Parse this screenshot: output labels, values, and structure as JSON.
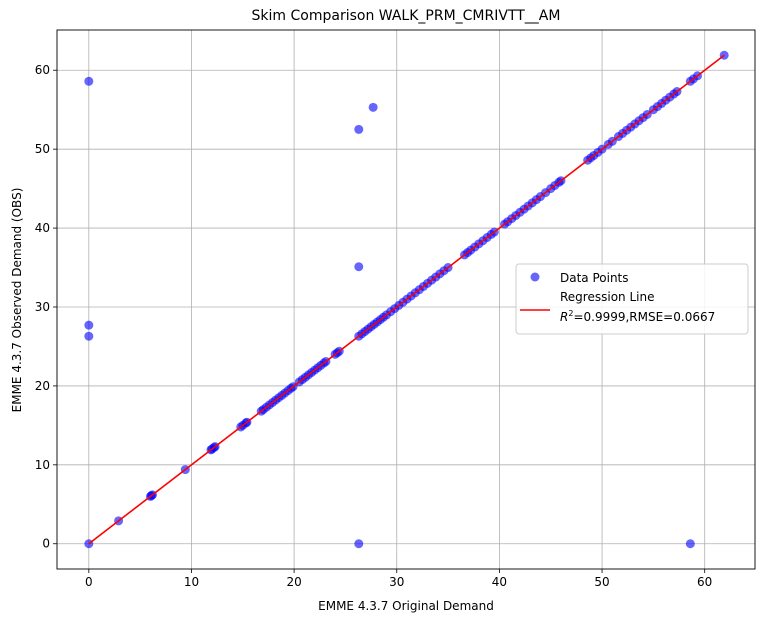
{
  "chart_data": {
    "type": "scatter",
    "title": "Skim Comparison WALK_PRM_CMRIVTT__AM",
    "xlabel": "EMME 4.3.7 Original Demand",
    "ylabel": "EMME 4.3.7 Observed Demand (OBS)",
    "xlim": [
      -3.1,
      64.9
    ],
    "ylim": [
      -3.2,
      65.1
    ],
    "xticks": [
      0,
      10,
      20,
      30,
      40,
      50,
      60
    ],
    "yticks": [
      0,
      10,
      20,
      30,
      40,
      50,
      60
    ],
    "grid": true,
    "legend_placement": "center-right",
    "legend": {
      "points_label": "Data Points",
      "line_label": "Regression Line",
      "r2_label": "R",
      "r2_sup": "2",
      "stats_label": "=0.9999,RMSE=0.0667"
    },
    "colors": {
      "points": "#0000ff",
      "line": "#ff0000"
    },
    "regression": {
      "slope": 1.0,
      "intercept": 0.0,
      "x_range": [
        0,
        61.9
      ],
      "r2": 0.9999,
      "rmse": 0.0667
    },
    "diagonal_x": [
      0,
      2.9,
      6.0,
      6.1,
      6.2,
      9.4,
      11.9,
      12.0,
      12.2,
      12.3,
      14.8,
      15.0,
      15.3,
      15.4,
      16.8,
      17.0,
      17.3,
      17.6,
      17.9,
      18.2,
      18.5,
      18.8,
      19.1,
      19.4,
      19.7,
      19.9,
      20.5,
      20.8,
      21.1,
      21.4,
      21.7,
      22.0,
      22.3,
      22.6,
      22.9,
      23.1,
      24.0,
      24.2,
      24.4,
      26.3,
      26.6,
      26.9,
      27.2,
      27.5,
      27.8,
      28.1,
      28.4,
      28.7,
      29.0,
      29.4,
      29.8,
      30.2,
      30.6,
      31.0,
      31.4,
      31.8,
      32.2,
      32.6,
      33.0,
      33.4,
      33.8,
      34.2,
      34.6,
      35.0,
      36.6,
      36.9,
      37.2,
      37.6,
      38.0,
      38.4,
      38.8,
      39.2,
      39.5,
      40.5,
      40.8,
      41.2,
      41.6,
      42.0,
      42.4,
      42.8,
      43.2,
      43.6,
      44.0,
      44.5,
      45.0,
      45.4,
      45.8,
      46.0,
      48.6,
      48.9,
      49.2,
      49.6,
      50.0,
      50.6,
      51.0,
      51.6,
      52.0,
      52.4,
      52.8,
      53.2,
      53.6,
      54.0,
      54.4,
      55.0,
      55.4,
      55.8,
      56.2,
      56.6,
      57.0,
      57.3,
      58.6,
      58.9,
      59.3,
      61.9
    ],
    "outliers": [
      [
        0,
        58.6
      ],
      [
        0,
        27.7
      ],
      [
        0,
        26.3
      ],
      [
        26.3,
        52.5
      ],
      [
        27.7,
        55.3
      ],
      [
        26.3,
        35.1
      ],
      [
        26.3,
        0
      ],
      [
        58.6,
        0
      ]
    ]
  }
}
